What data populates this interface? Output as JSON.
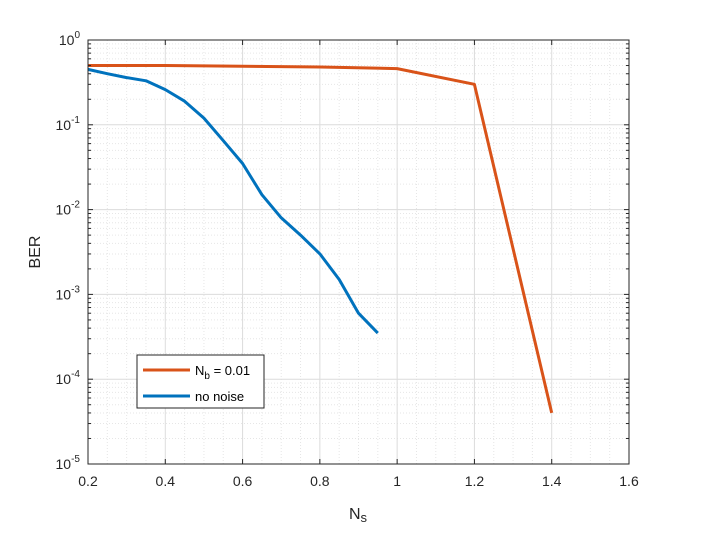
{
  "chart_data": {
    "type": "line",
    "xlabel_main": "N",
    "xlabel_sub": "s",
    "ylabel": "BER",
    "xlim": [
      0.2,
      1.6
    ],
    "ylim": [
      1e-05,
      1
    ],
    "yscale": "log",
    "x_ticks": [
      "0.2",
      "0.4",
      "0.6",
      "0.8",
      "1",
      "1.2",
      "1.4",
      "1.6"
    ],
    "y_ticks": [
      {
        "value": 1e-05,
        "base": "10",
        "exp": "-5"
      },
      {
        "value": 0.0001,
        "base": "10",
        "exp": "-4"
      },
      {
        "value": 0.001,
        "base": "10",
        "exp": "-3"
      },
      {
        "value": 0.01,
        "base": "10",
        "exp": "-2"
      },
      {
        "value": 0.1,
        "base": "10",
        "exp": "-1"
      },
      {
        "value": 1,
        "base": "10",
        "exp": "0"
      }
    ],
    "grid": true,
    "minor_grid": true,
    "legend_position": "bottom-left",
    "series": [
      {
        "legend_main": "N",
        "legend_sub": "b",
        "legend_rest": " = 0.01",
        "color": "#D95319",
        "x": [
          0.2,
          0.4,
          0.6,
          0.8,
          1.0,
          1.2,
          1.4
        ],
        "y": [
          0.5,
          0.5,
          0.49,
          0.48,
          0.46,
          0.3,
          4e-05
        ]
      },
      {
        "legend_main": "no noise",
        "color": "#0072BD",
        "x": [
          0.2,
          0.25,
          0.3,
          0.35,
          0.4,
          0.45,
          0.5,
          0.55,
          0.6,
          0.65,
          0.7,
          0.75,
          0.8,
          0.85,
          0.9,
          0.95
        ],
        "y": [
          0.45,
          0.4,
          0.36,
          0.33,
          0.26,
          0.19,
          0.12,
          0.065,
          0.035,
          0.015,
          0.008,
          0.005,
          0.003,
          0.0015,
          0.0006,
          0.00035
        ]
      }
    ]
  }
}
